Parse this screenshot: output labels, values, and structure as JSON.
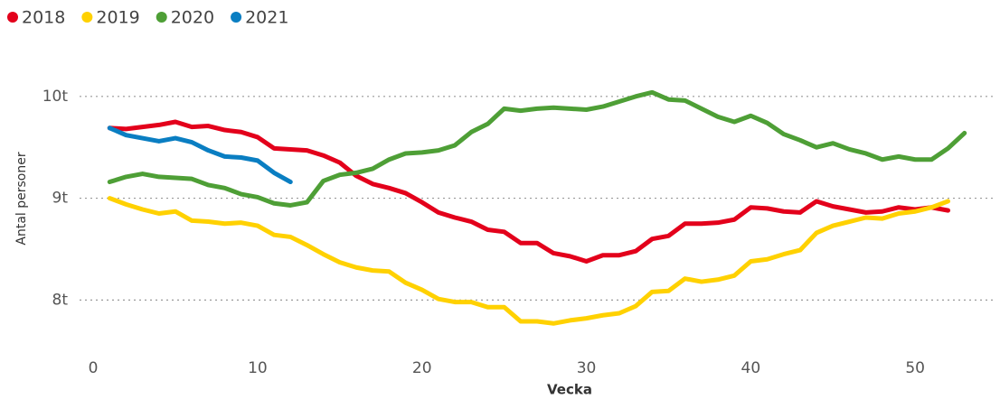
{
  "chart_data": {
    "type": "line",
    "x_label": "Vecka",
    "y_label": "Antal personer",
    "x": [
      1,
      2,
      3,
      4,
      5,
      6,
      7,
      8,
      9,
      10,
      11,
      12,
      13,
      14,
      15,
      16,
      17,
      18,
      19,
      20,
      21,
      22,
      23,
      24,
      25,
      26,
      27,
      28,
      29,
      30,
      31,
      32,
      33,
      34,
      35,
      36,
      37,
      38,
      39,
      40,
      41,
      42,
      43,
      44,
      45,
      46,
      47,
      48,
      49,
      50,
      51,
      52,
      53
    ],
    "series": [
      {
        "name": "2018",
        "color": "#e3001b",
        "values": [
          9690,
          9680,
          9700,
          9720,
          9750,
          9700,
          9710,
          9670,
          9650,
          9600,
          9490,
          9480,
          9470,
          9420,
          9350,
          9220,
          9140,
          9100,
          9050,
          8960,
          8860,
          8810,
          8770,
          8690,
          8670,
          8560,
          8560,
          8460,
          8430,
          8380,
          8440,
          8440,
          8480,
          8600,
          8630,
          8750,
          8750,
          8760,
          8790,
          8910,
          8900,
          8870,
          8860,
          8970,
          8920,
          8890,
          8860,
          8870,
          8910,
          8890,
          8910,
          8880,
          null
        ]
      },
      {
        "name": "2019",
        "color": "#ffd100",
        "values": [
          9000,
          8940,
          8890,
          8850,
          8870,
          8780,
          8770,
          8750,
          8760,
          8730,
          8640,
          8620,
          8540,
          8450,
          8370,
          8320,
          8290,
          8280,
          8170,
          8100,
          8010,
          7980,
          7980,
          7930,
          7930,
          7790,
          7790,
          7770,
          7800,
          7820,
          7850,
          7870,
          7940,
          8080,
          8090,
          8210,
          8180,
          8200,
          8240,
          8380,
          8400,
          8450,
          8490,
          8660,
          8730,
          8770,
          8810,
          8800,
          8850,
          8870,
          8910,
          8970,
          null
        ]
      },
      {
        "name": "2020",
        "color": "#4e9f36",
        "values": [
          9160,
          9210,
          9240,
          9210,
          9200,
          9190,
          9130,
          9100,
          9040,
          9010,
          8950,
          8930,
          8960,
          9170,
          9230,
          9250,
          9290,
          9380,
          9440,
          9450,
          9470,
          9520,
          9650,
          9730,
          9880,
          9860,
          9880,
          9890,
          9880,
          9870,
          9900,
          9950,
          10000,
          10040,
          9970,
          9960,
          9880,
          9800,
          9750,
          9810,
          9740,
          9630,
          9570,
          9500,
          9540,
          9480,
          9440,
          9380,
          9410,
          9380,
          9380,
          9490,
          9640
        ]
      },
      {
        "name": "2021",
        "color": "#0a7ec2",
        "values": [
          9690,
          9620,
          9590,
          9560,
          9590,
          9550,
          9470,
          9410,
          9400,
          9370,
          9250,
          9160,
          null,
          null,
          null,
          null,
          null,
          null,
          null,
          null,
          null,
          null,
          null,
          null,
          null,
          null,
          null,
          null,
          null,
          null,
          null,
          null,
          null,
          null,
          null,
          null,
          null,
          null,
          null,
          null,
          null,
          null,
          null,
          null,
          null,
          null,
          null,
          null,
          null,
          null,
          null,
          null,
          null
        ]
      }
    ],
    "xlim": [
      -0.5,
      54.5
    ],
    "xticks": [
      0,
      10,
      20,
      30,
      40,
      50
    ],
    "ylim": [
      7400,
      10300
    ],
    "yticks": [
      {
        "value": 8000,
        "label": "8t"
      },
      {
        "value": 9000,
        "label": "9t"
      },
      {
        "value": 10000,
        "label": "10t"
      }
    ],
    "grid": true
  }
}
